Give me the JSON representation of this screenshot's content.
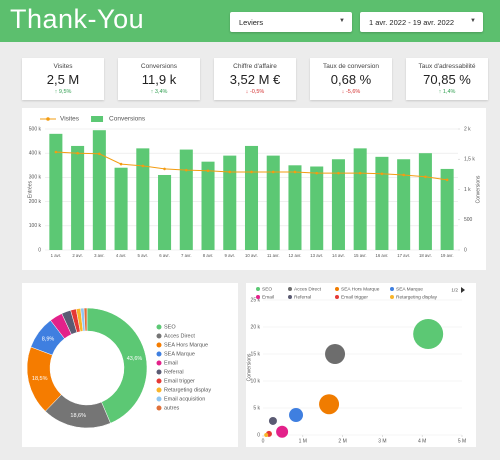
{
  "header": {
    "title": "Thank-You",
    "filter": "Leviers",
    "date_range": "1 avr. 2022 - 19 avr. 2022"
  },
  "kpis": [
    {
      "label": "Visites",
      "value": "2,5 M",
      "delta": "9,5%",
      "color": "#2e9e4f"
    },
    {
      "label": "Conversions",
      "value": "11,9 k",
      "delta": "3,4%",
      "color": "#2e9e4f"
    },
    {
      "label": "Chiffre d'affaire",
      "value": "3,52 M €",
      "delta": "-0,5%",
      "color": "#d32f2f"
    },
    {
      "label": "Taux de conversion",
      "value": "0,68 %",
      "delta": "-5,6%",
      "color": "#d32f2f"
    },
    {
      "label": "Taux d'adressabilité",
      "value": "70,85 %",
      "delta": "1,4%",
      "color": "#2e9e4f"
    }
  ],
  "chart_data": [
    {
      "type": "combo",
      "categories": [
        "1 avr.",
        "2 avr.",
        "3 avr.",
        "4 avr.",
        "5 avr.",
        "6 avr.",
        "7 avr.",
        "8 avr.",
        "9 avr.",
        "10 avr.",
        "11 avr.",
        "12 avr.",
        "13 avr.",
        "14 avr.",
        "15 avr.",
        "16 avr.",
        "17 avr.",
        "18 avr.",
        "19 avr."
      ],
      "y_label": "Entrées",
      "y2_label": "Conversions",
      "ylim": [
        0,
        500000
      ],
      "yticks": [
        0,
        {
          "value": 100000,
          "label": "100 k"
        },
        {
          "value": 200000,
          "label": "200 k"
        },
        {
          "value": 300000,
          "label": "300 k"
        },
        {
          "value": 400000,
          "label": "400 k"
        },
        {
          "value": 500000,
          "label": "500 k"
        }
      ],
      "y2lim": [
        0,
        2000
      ],
      "y2ticks": [
        0,
        500,
        {
          "value": 1000,
          "label": "1 k"
        },
        {
          "value": 1500,
          "label": "1,5 k"
        },
        {
          "value": 2000,
          "label": "2 k"
        }
      ],
      "series": [
        {
          "name": "Visites",
          "mark": "line",
          "axis": "y2",
          "color": "#f39c12",
          "values": [
            1620,
            1600,
            1590,
            1420,
            1390,
            1340,
            1320,
            1310,
            1290,
            1290,
            1290,
            1290,
            1270,
            1270,
            1270,
            1260,
            1240,
            1210,
            1160
          ]
        },
        {
          "name": "Conversions",
          "mark": "bar",
          "color": "#5cc874",
          "values": [
            480000,
            430000,
            495000,
            340000,
            420000,
            310000,
            415000,
            365000,
            390000,
            430000,
            390000,
            350000,
            345000,
            375000,
            420000,
            385000,
            375000,
            400000,
            335000
          ]
        }
      ]
    },
    {
      "type": "donut",
      "categories": [
        "SEO",
        "Acces Direct",
        "SEA Hors Marque",
        "SEA Marque",
        "Email",
        "Referral",
        "Email trigger",
        "Retargeting display",
        "Email acquisition",
        "autres"
      ],
      "values": [
        43.6,
        18.6,
        18.5,
        8.9,
        3.5,
        2.5,
        1.5,
        1.2,
        0.9,
        0.8
      ],
      "value_labels": [
        "43,6%",
        "18,6%",
        "18,5%",
        "8,9%",
        null,
        null,
        null,
        null,
        null,
        null
      ],
      "colors": [
        "#5cc874",
        "#757575",
        "#f57c00",
        "#3f7fe0",
        "#e3218a",
        "#5b5b73",
        "#e53935",
        "#f9b52a",
        "#8fc6f2",
        "#e0703a"
      ]
    },
    {
      "type": "bubble",
      "y_label": "Conversions",
      "page": "1/2",
      "xlim": [
        0,
        5000000
      ],
      "xticks": [
        0,
        {
          "value": 1000000,
          "label": "1 M"
        },
        {
          "value": 2000000,
          "label": "2 M"
        },
        {
          "value": 3000000,
          "label": "3 M"
        },
        {
          "value": 4000000,
          "label": "4 M"
        },
        {
          "value": 5000000,
          "label": "5 M"
        }
      ],
      "ylim": [
        0,
        25000
      ],
      "yticks": [
        0,
        {
          "value": 5000,
          "label": "5 k"
        },
        {
          "value": 10000,
          "label": "10 k"
        },
        {
          "value": 15000,
          "label": "15 k"
        },
        {
          "value": 20000,
          "label": "20 k"
        },
        {
          "value": 25000,
          "label": "25 k"
        }
      ],
      "series": [
        {
          "name": "SEO",
          "color": "#5cc874",
          "x": [
            4150000
          ],
          "y": [
            18700
          ],
          "size": [
            15
          ]
        },
        {
          "name": "Acces Direct",
          "color": "#6d6d6d",
          "x": [
            1810000
          ],
          "y": [
            15000
          ],
          "size": [
            10
          ]
        },
        {
          "name": "SEA Hors Marque",
          "color": "#f07c00",
          "x": [
            1660000
          ],
          "y": [
            5700
          ],
          "size": [
            10
          ]
        },
        {
          "name": "SEA Marque",
          "color": "#3f7fe0",
          "x": [
            830000
          ],
          "y": [
            3700
          ],
          "size": [
            7
          ]
        },
        {
          "name": "Email",
          "color": "#e3218a",
          "x": [
            480000
          ],
          "y": [
            600
          ],
          "size": [
            6
          ]
        },
        {
          "name": "Referral",
          "color": "#5b5b73",
          "x": [
            250000
          ],
          "y": [
            2600
          ],
          "size": [
            4
          ]
        },
        {
          "name": "Email trigger",
          "color": "#e53935",
          "x": [
            150000
          ],
          "y": [
            200
          ],
          "size": [
            3
          ]
        },
        {
          "name": "Retargeting display",
          "color": "#f9b52a",
          "x": [
            80000
          ],
          "y": [
            0
          ],
          "size": [
            2
          ]
        }
      ]
    }
  ]
}
